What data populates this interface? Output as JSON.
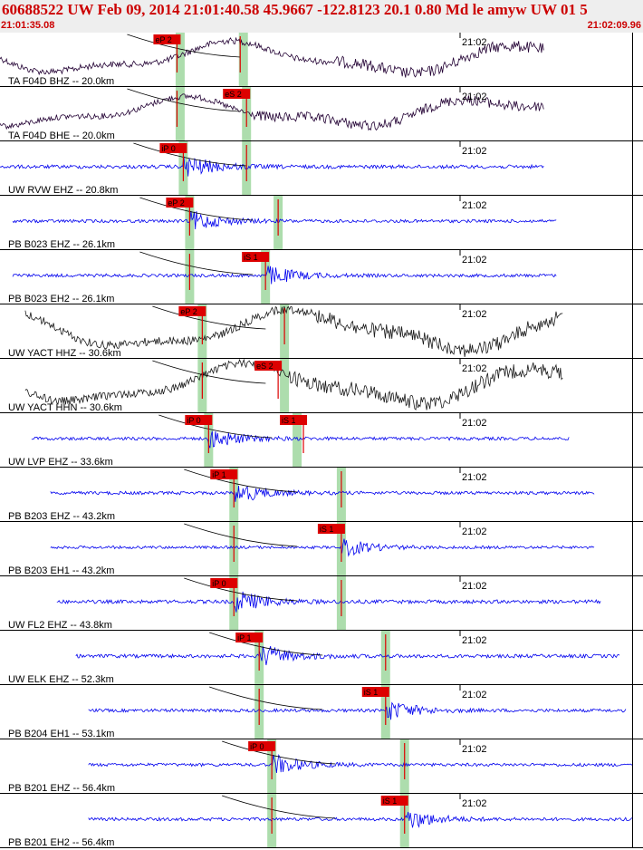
{
  "header": {
    "title": "60688522 UW Feb 09, 2014 21:01:40.58   45.9667 -122.8123 20.1 0.80 Md le amyw UW 01   5",
    "start_time": "21:01:35.08",
    "end_time": "21:02:09.96"
  },
  "chart_data": {
    "type": "line",
    "title": "60688522 UW Feb 09, 2014 21:01:40.58   45.9667 -122.8123 20.1 0.80 Md le amyw UW 01   5",
    "x_range": [
      "21:01:35.08",
      "21:02:09.96"
    ],
    "time_mark": "21:02",
    "colors": {
      "trace_black": "#1a1a1a",
      "trace_dark": "#220033",
      "trace_blue": "#0000ee",
      "pick": "#dd0000",
      "window": "#9fd79f",
      "header_text": "#cc0000"
    },
    "traces": [
      {
        "label": "TA F04D BHZ -- 20.0km",
        "color": "dark",
        "start": 0.0,
        "end": 0.86,
        "style": "lowfreq",
        "amp": 1.0,
        "picks": [
          {
            "text": "eP 2",
            "t": 0.28,
            "window": 0.285
          },
          {
            "text": "",
            "t": 0.38,
            "window": 0.385
          }
        ],
        "arrival": 0.53
      },
      {
        "label": "TA F04D BHE -- 20.0km",
        "color": "dark",
        "start": 0.0,
        "end": 0.86,
        "style": "lowfreq",
        "amp": 0.9,
        "picks": [
          {
            "text": "",
            "t": 0.28,
            "window": 0.285
          },
          {
            "text": "eS 2",
            "t": 0.39,
            "window": 0.39
          }
        ],
        "arrival": 0.4
      },
      {
        "label": "UW RVW EHZ -- 20.8km",
        "color": "blue",
        "start": 0.0,
        "end": 0.86,
        "style": "event",
        "amp": 0.9,
        "picks": [
          {
            "text": "iP 0",
            "t": 0.29,
            "window": 0.29
          },
          {
            "text": "",
            "t": 0.39,
            "window": 0.39
          }
        ],
        "arrival": 0.29
      },
      {
        "label": "PB B023 EHZ -- 26.1km",
        "color": "blue",
        "start": 0.02,
        "end": 0.88,
        "style": "event",
        "amp": 0.8,
        "picks": [
          {
            "text": "eP 2",
            "t": 0.3,
            "window": 0.3
          },
          {
            "text": "",
            "t": 0.44,
            "window": 0.44
          }
        ],
        "arrival": 0.3
      },
      {
        "label": "PB B023 EH2 -- 26.1km",
        "color": "blue",
        "start": 0.02,
        "end": 0.88,
        "style": "event",
        "amp": 0.8,
        "picks": [
          {
            "text": "",
            "t": 0.3,
            "window": 0.3
          },
          {
            "text": "iS 1",
            "t": 0.42,
            "window": 0.42
          }
        ],
        "arrival": 0.42
      },
      {
        "label": "UW YACT HHZ -- 30.6km",
        "color": "black",
        "start": 0.04,
        "end": 0.89,
        "style": "lowfreq",
        "amp": 1.3,
        "picks": [
          {
            "text": "eP 2",
            "t": 0.32,
            "window": 0.32
          },
          {
            "text": "",
            "t": 0.45,
            "window": 0.45
          }
        ],
        "arrival": 0.5
      },
      {
        "label": "UW YACT HHN -- 30.6km",
        "color": "black",
        "start": 0.04,
        "end": 0.89,
        "style": "lowfreq",
        "amp": 1.3,
        "picks": [
          {
            "text": "",
            "t": 0.32,
            "window": 0.32
          },
          {
            "text": "eS 2",
            "t": 0.44,
            "window": 0.45
          }
        ],
        "arrival": 0.45
      },
      {
        "label": "UW LVP EHZ -- 33.6km",
        "color": "blue",
        "start": 0.05,
        "end": 0.9,
        "style": "event",
        "amp": 0.8,
        "picks": [
          {
            "text": "iP 0",
            "t": 0.33,
            "window": 0.33
          },
          {
            "text": "iS 1",
            "t": 0.48,
            "window": 0.47
          }
        ],
        "arrival": 0.33
      },
      {
        "label": "PB B203 EHZ -- 43.2km",
        "color": "blue",
        "start": 0.08,
        "end": 0.94,
        "style": "event",
        "amp": 0.8,
        "picks": [
          {
            "text": "iP 1",
            "t": 0.37,
            "window": 0.37
          },
          {
            "text": "",
            "t": 0.54,
            "window": 0.54
          }
        ],
        "arrival": 0.37
      },
      {
        "label": "PB B203 EH1 -- 43.2km",
        "color": "blue",
        "start": 0.08,
        "end": 0.94,
        "style": "event",
        "amp": 0.7,
        "picks": [
          {
            "text": "",
            "t": 0.37,
            "window": 0.37
          },
          {
            "text": "iS 1",
            "t": 0.54,
            "window": 0.54
          }
        ],
        "arrival": 0.54
      },
      {
        "label": "UW FL2 EHZ -- 43.8km",
        "color": "blue",
        "start": 0.09,
        "end": 0.95,
        "style": "event",
        "amp": 0.9,
        "picks": [
          {
            "text": "iP 0",
            "t": 0.37,
            "window": 0.37
          },
          {
            "text": "",
            "t": 0.54,
            "window": 0.54
          }
        ],
        "arrival": 0.37
      },
      {
        "label": "UW ELK EHZ -- 52.3km",
        "color": "blue",
        "start": 0.12,
        "end": 0.98,
        "style": "event",
        "amp": 0.9,
        "picks": [
          {
            "text": "iP 1",
            "t": 0.41,
            "window": 0.41
          },
          {
            "text": "",
            "t": 0.61,
            "window": 0.61
          }
        ],
        "arrival": 0.41
      },
      {
        "label": "PB B204 EH1 -- 53.1km",
        "color": "blue",
        "start": 0.14,
        "end": 0.99,
        "style": "event",
        "amp": 0.8,
        "picks": [
          {
            "text": "",
            "t": 0.41,
            "window": 0.41
          },
          {
            "text": "iS 1",
            "t": 0.61,
            "window": 0.61
          }
        ],
        "arrival": 0.61
      },
      {
        "label": "PB B201 EHZ -- 56.4km",
        "color": "blue",
        "start": 0.14,
        "end": 1.0,
        "style": "event",
        "amp": 0.8,
        "picks": [
          {
            "text": "iP 0",
            "t": 0.43,
            "window": 0.43
          },
          {
            "text": "",
            "t": 0.64,
            "window": 0.64
          }
        ],
        "arrival": 0.43
      },
      {
        "label": "PB B201 EH2 -- 56.4km",
        "color": "blue",
        "start": 0.14,
        "end": 1.0,
        "style": "event",
        "amp": 0.8,
        "picks": [
          {
            "text": "",
            "t": 0.43,
            "window": 0.43
          },
          {
            "text": "iS 1",
            "t": 0.64,
            "window": 0.64
          }
        ],
        "arrival": 0.64
      }
    ]
  }
}
